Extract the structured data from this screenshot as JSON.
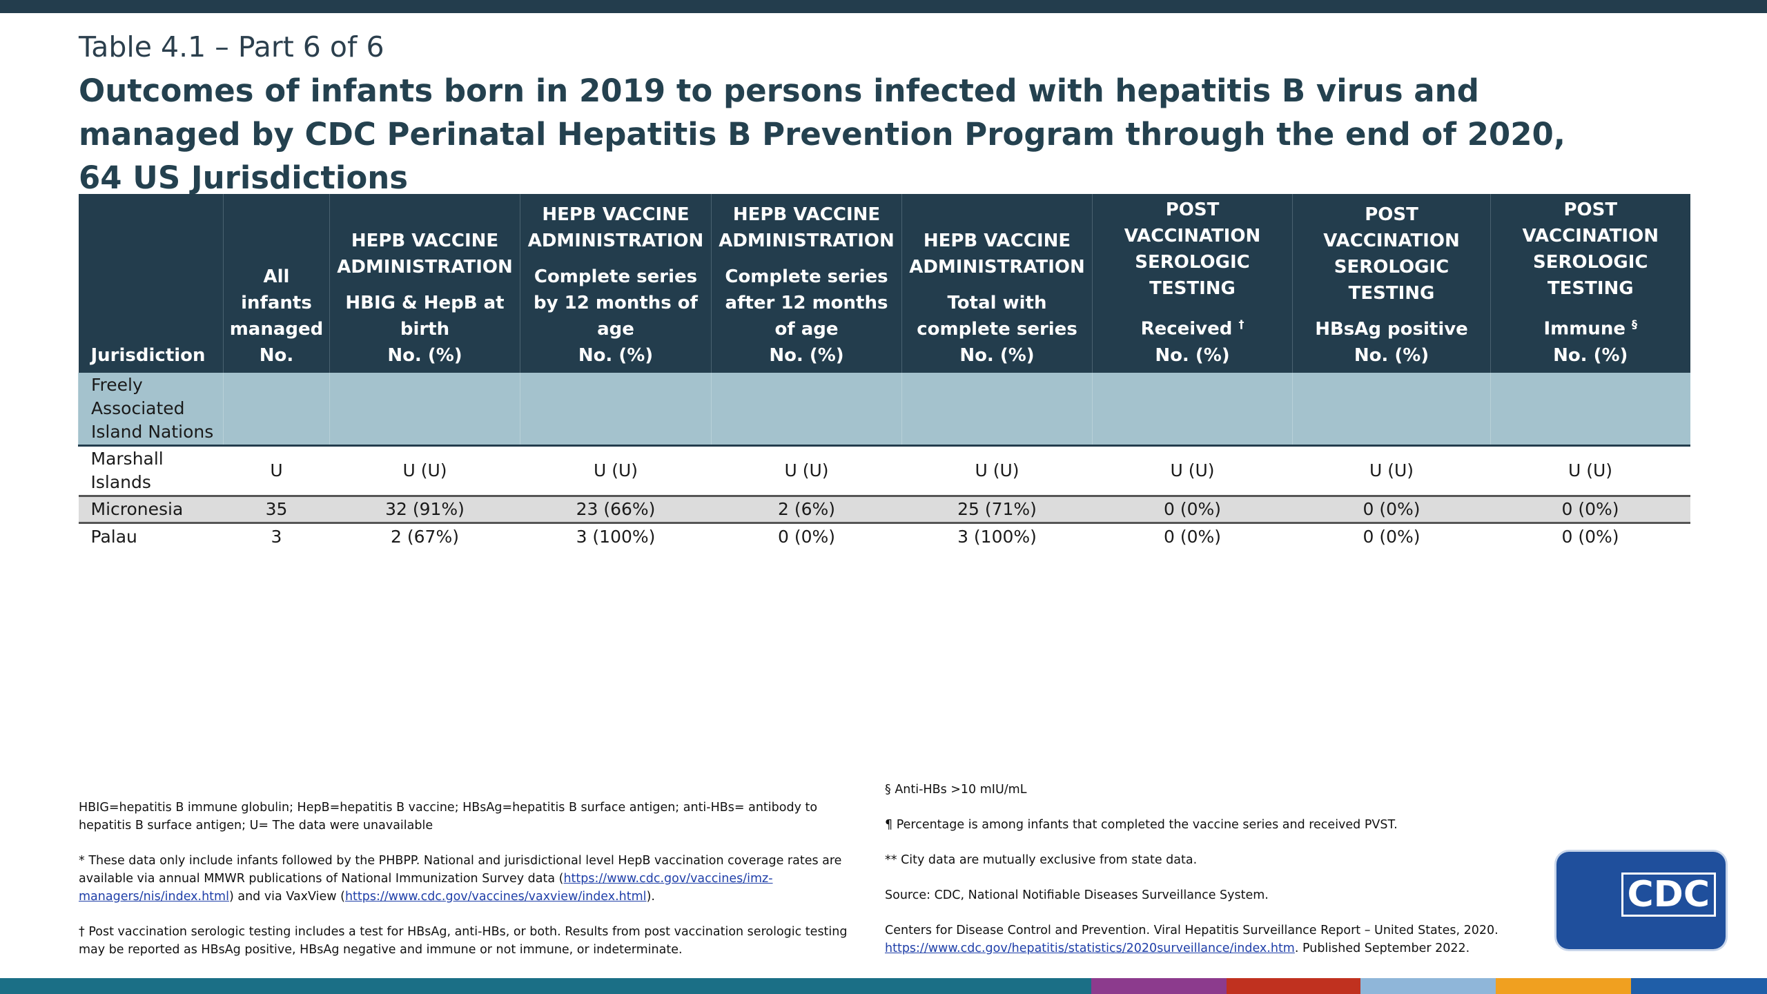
{
  "header": {
    "label": "Table 4.1 – Part 6 of 6",
    "title": "Outcomes of infants born in 2019 to persons infected with hepatitis B virus and managed by CDC Perinatal Hepatitis B Prevention Program through the end of 2020, 64 US Jurisdictions"
  },
  "table": {
    "columns": [
      {
        "label": "Jurisdiction"
      },
      {
        "label": "All infants managed",
        "unit": "No."
      },
      {
        "group": "HEPB VACCINE ADMINISTRATION",
        "label": "HBIG & HepB at birth",
        "unit": "No. (%)"
      },
      {
        "group": "HEPB VACCINE ADMINISTRATION",
        "label": "Complete series by 12 months of age",
        "unit": "No. (%)"
      },
      {
        "group": "HEPB VACCINE ADMINISTRATION",
        "label": "Complete series after 12 months of age",
        "unit": "No. (%)"
      },
      {
        "group": "HEPB VACCINE ADMINISTRATION",
        "label": "Total with complete series",
        "unit": "No. (%)"
      },
      {
        "group": "POST VACCINATION SEROLOGIC TESTING",
        "label": "Received",
        "mark": "†",
        "unit": "No. (%)"
      },
      {
        "group": "POST VACCINATION SEROLOGIC TESTING",
        "label": "HBsAg positive",
        "unit": "No. (%)"
      },
      {
        "group": "POST VACCINATION SEROLOGIC TESTING",
        "label": "Immune",
        "mark": "§",
        "unit": "No. (%)"
      }
    ],
    "section": "Freely Associated Island Nations",
    "rows": [
      [
        "Marshall Islands",
        "U",
        "U (U)",
        "U (U)",
        "U (U)",
        "U (U)",
        "U (U)",
        "U (U)",
        "U (U)"
      ],
      [
        "Micronesia",
        "35",
        "32 (91%)",
        "23 (66%)",
        "2 (6%)",
        "25 (71%)",
        "0 (0%)",
        "0 (0%)",
        "0 (0%)"
      ],
      [
        "Palau",
        "3",
        "2 (67%)",
        "3 (100%)",
        "0 (0%)",
        "3 (100%)",
        "0 (0%)",
        "0 (0%)",
        "0 (0%)"
      ]
    ]
  },
  "footnotes": {
    "left": [
      [
        {
          "text": "HBIG=hepatitis B immune globulin; HepB=hepatitis B vaccine; HBsAg=hepatitis B surface antigen; anti-HBs= antibody to hepatitis B surface antigen; U= The data were unavailable"
        }
      ],
      [
        {
          "text": "* These data only include infants followed by the PHBPP. National and jurisdictional level HepB vaccination coverage rates are available via annual MMWR publications of National Immunization Survey data ("
        },
        {
          "link": "https://www.cdc.gov/vaccines/imz-managers/nis/index.html"
        },
        {
          "text": ") and via VaxView ("
        },
        {
          "link": "https://www.cdc.gov/vaccines/vaxview/index.html"
        },
        {
          "text": ")."
        }
      ],
      [
        {
          "text": "† Post vaccination serologic testing includes a test for HBsAg, anti-HBs, or both. Results from post vaccination serologic testing may be reported as HBsAg positive, HBsAg negative and immune or not immune, or indeterminate."
        }
      ]
    ],
    "right": [
      [
        {
          "text": "§ Anti-HBs >10 mIU/mL"
        }
      ],
      [
        {
          "text": "¶ Percentage is among infants that completed the vaccine series and received PVST."
        }
      ],
      [
        {
          "text": "** City data are mutually exclusive from state data."
        }
      ],
      [
        {
          "text": "Source: CDC, National Notifiable Diseases Surveillance System."
        }
      ],
      [
        {
          "text": "Centers for Disease Control and Prevention. Viral Hepatitis Surveillance Report – United States, 2020. "
        },
        {
          "link": "https://www.cdc.gov/hepatitis/statistics/2020surveillance/index.htm"
        },
        {
          "text": ". Published September 2022."
        }
      ]
    ]
  },
  "logo_text": "CDC"
}
